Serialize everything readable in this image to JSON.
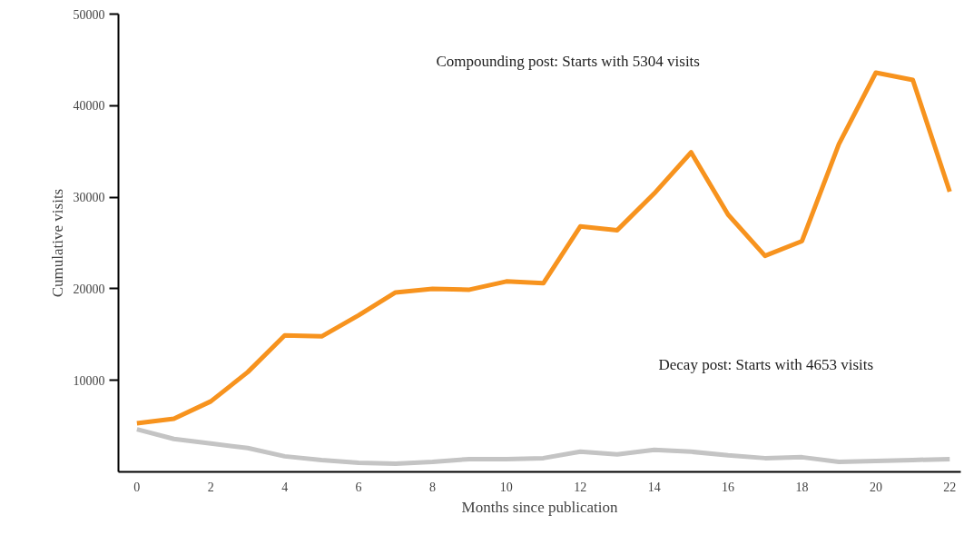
{
  "chart_data": {
    "type": "line",
    "xlabel": "Months since publication",
    "ylabel": "Cumulative visits",
    "x": [
      0,
      1,
      2,
      3,
      4,
      5,
      6,
      7,
      8,
      9,
      10,
      11,
      12,
      13,
      14,
      15,
      16,
      17,
      18,
      19,
      20,
      21,
      22
    ],
    "series": [
      {
        "color": "#f7931e",
        "values": [
          5304,
          5800,
          7700,
          10900,
          14900,
          14800,
          17100,
          19600,
          20000,
          19900,
          20800,
          20600,
          26800,
          26400,
          30400,
          34900,
          28100,
          23600,
          25200,
          35800,
          43600,
          42800,
          30600
        ]
      },
      {
        "color": "#c4c4c4",
        "values": [
          4653,
          3600,
          3100,
          2600,
          1700,
          1300,
          1000,
          900,
          1100,
          1400,
          1400,
          1500,
          2200,
          1900,
          2400,
          2200,
          1800,
          1500,
          1600,
          1100,
          1200,
          1300,
          1400
        ]
      }
    ],
    "annotations": [
      "Compounding post: Starts with 5304 visits",
      "Decay post: Starts with 4653 visits"
    ],
    "xlim": [
      -0.5,
      22.3
    ],
    "ylim": [
      0,
      50000
    ],
    "xticks": [
      0,
      2,
      4,
      6,
      8,
      10,
      12,
      14,
      16,
      18,
      20,
      22
    ],
    "yticks": [
      10000,
      20000,
      30000,
      40000,
      50000
    ],
    "grid": false,
    "marker": "none",
    "line_style": "solid"
  }
}
